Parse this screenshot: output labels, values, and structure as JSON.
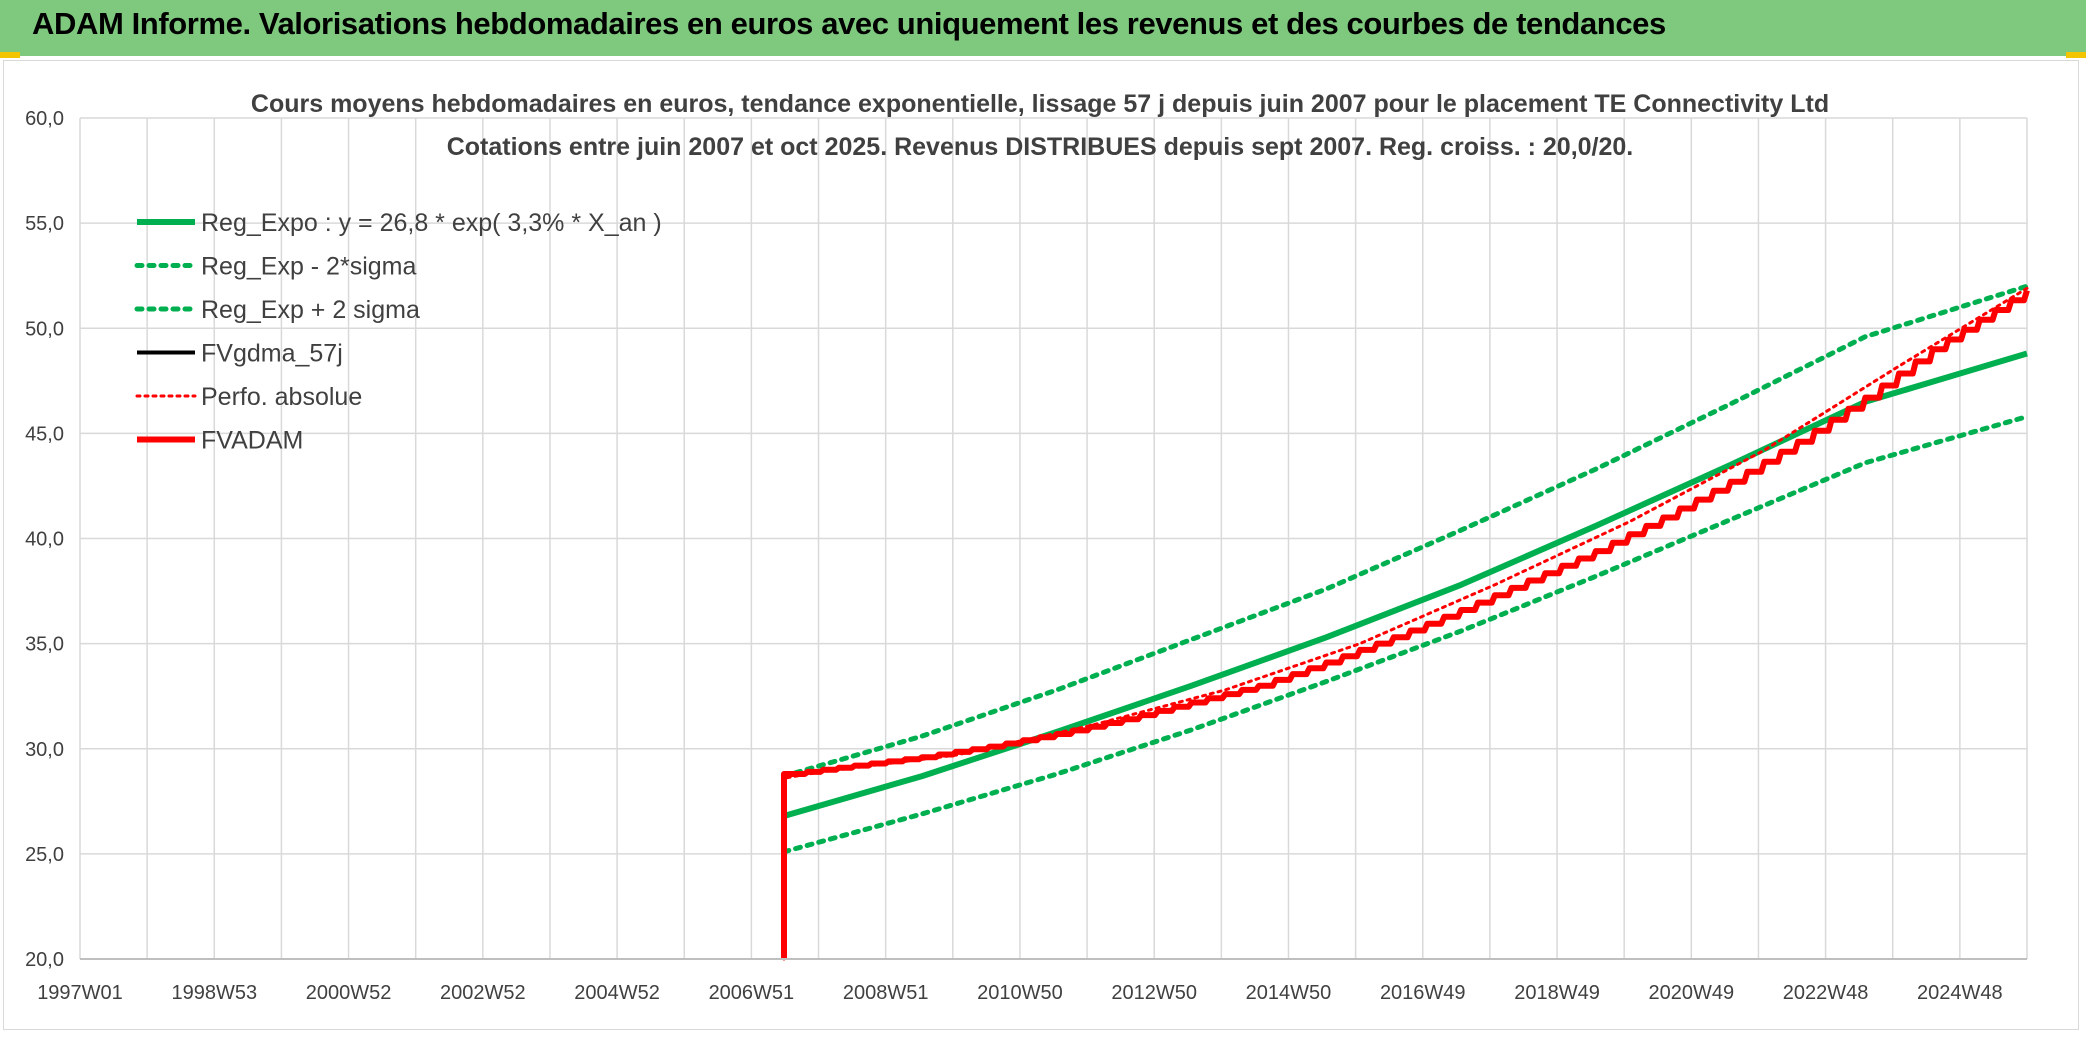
{
  "banner": {
    "title": "ADAM Informe. Valorisations hebdomadaires en euros avec uniquement les revenus et des courbes de tendances",
    "background": "#7ec97e"
  },
  "chart_data": {
    "type": "line",
    "title": "Cours moyens hebdomadaires en euros, tendance exponentielle, lissage 57 j depuis juin 2007 pour le placement TE Connectivity Ltd",
    "subtitle": "Cotations entre juin 2007 et oct 2025. Revenus DISTRIBUES depuis sept 2007. Reg. croiss. : 20,0/20.",
    "xlabel": "",
    "ylabel": "",
    "x_tick_labels": [
      "1997W01",
      "1998W53",
      "2000W52",
      "2002W52",
      "2004W52",
      "2006W51",
      "2008W51",
      "2010W50",
      "2012W50",
      "2014W50",
      "2016W49",
      "2018W49",
      "2020W49",
      "2022W48",
      "2024W48"
    ],
    "xlim": [
      1997.0,
      2025.9
    ],
    "ylim": [
      20.0,
      60.0
    ],
    "y_ticks": [
      "20,0",
      "25,0",
      "30,0",
      "35,0",
      "40,0",
      "45,0",
      "50,0",
      "55,0",
      "60,0"
    ],
    "grid": true,
    "legend_position": "top-left",
    "series": [
      {
        "name": "Reg_Expo : y = 26,8 * exp( 3,3% *  X_an )",
        "color": "#00b050",
        "style": "solid",
        "width": 6,
        "x": [
          2007.45,
          2009.5,
          2011.5,
          2013.5,
          2015.5,
          2017.5,
          2019.5,
          2021.5,
          2023.5,
          2025.9
        ],
        "y": [
          26.8,
          28.7,
          30.8,
          33.0,
          35.3,
          37.8,
          40.6,
          43.5,
          46.5,
          48.8
        ]
      },
      {
        "name": "Reg_Exp - 2*sigma",
        "color": "#00b050",
        "style": "dotted",
        "width": 5,
        "x": [
          2007.45,
          2009.5,
          2011.5,
          2013.5,
          2015.5,
          2017.5,
          2019.5,
          2021.5,
          2023.5,
          2025.9
        ],
        "y": [
          25.1,
          26.9,
          28.8,
          30.9,
          33.2,
          35.6,
          38.2,
          40.9,
          43.6,
          45.8
        ]
      },
      {
        "name": "Reg_Exp + 2 sigma",
        "color": "#00b050",
        "style": "dotted",
        "width": 5,
        "x": [
          2007.45,
          2009.5,
          2011.5,
          2013.5,
          2015.5,
          2017.5,
          2019.5,
          2021.5,
          2023.5,
          2025.9
        ],
        "y": [
          28.7,
          30.6,
          32.8,
          35.2,
          37.6,
          40.4,
          43.3,
          46.4,
          49.6,
          52.0
        ]
      },
      {
        "name": "FVgdma_57j",
        "color": "#000000",
        "style": "solid",
        "width": 4,
        "x": [],
        "y": []
      },
      {
        "name": "Perfo. absolue",
        "color": "#ff0000",
        "style": "dotted",
        "width": 3,
        "x": [
          2007.45,
          2007.45,
          2008.0,
          2010.0,
          2012.0,
          2014.0,
          2016.0,
          2018.0,
          2020.0,
          2022.0,
          2024.0,
          2025.9
        ],
        "y": [
          20.0,
          28.6,
          28.9,
          29.7,
          31.1,
          32.8,
          35.0,
          37.8,
          40.8,
          44.2,
          48.2,
          51.9
        ]
      },
      {
        "name": "FVADAM",
        "color": "#ff0000",
        "style": "solid",
        "width": 6,
        "x": [
          2007.45,
          2007.45,
          2007.8,
          2008.5,
          2009.5,
          2010.5,
          2011.5,
          2012.5,
          2013.5,
          2014.5,
          2015.5,
          2016.5,
          2017.5,
          2018.5,
          2019.5,
          2020.5,
          2021.5,
          2022.5,
          2023.5,
          2024.5,
          2025.9
        ],
        "y": [
          20.0,
          28.8,
          28.9,
          29.2,
          29.6,
          30.1,
          30.7,
          31.4,
          32.2,
          33.0,
          34.1,
          35.3,
          36.6,
          38.0,
          39.4,
          41.0,
          42.7,
          44.6,
          46.7,
          49.0,
          51.8
        ]
      }
    ]
  }
}
